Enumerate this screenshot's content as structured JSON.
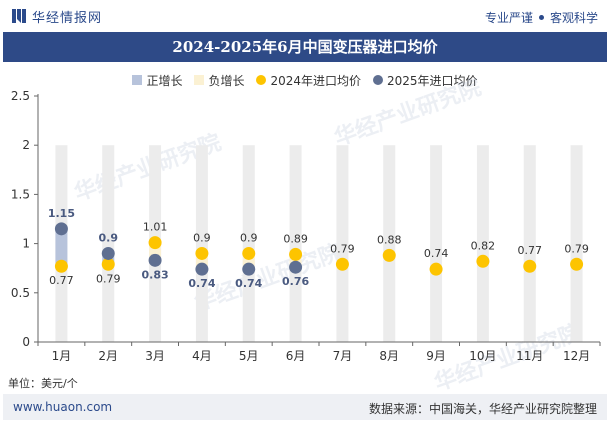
{
  "header": {
    "brand": "华经情报网",
    "tagline_left": "专业严谨",
    "tagline_right": "客观科学"
  },
  "title": "2024-2025年6月中国变压器进口均价",
  "legend": [
    {
      "label": "正增长",
      "color": "#b7c3db",
      "shape": "rect"
    },
    {
      "label": "负增长",
      "color": "#fbf1d3",
      "shape": "rect"
    },
    {
      "label": "2024年进口均价",
      "color": "#fdc400",
      "shape": "dot"
    },
    {
      "label": "2025年进口均价",
      "color": "#5f6f91",
      "shape": "dot"
    }
  ],
  "unit_label": "单位：美元/个",
  "footer": {
    "url": "www.huaon.com",
    "source": "数据来源：中国海关，华经产业研究院整理"
  },
  "watermark": "华经产业研究院",
  "chart_data": {
    "type": "scatter",
    "categories": [
      "1月",
      "2月",
      "3月",
      "4月",
      "5月",
      "6月",
      "7月",
      "8月",
      "9月",
      "10月",
      "11月",
      "12月"
    ],
    "ylim": [
      0,
      2.5
    ],
    "yticks": [
      0,
      0.5,
      1,
      1.5,
      2,
      2.5
    ],
    "series": [
      {
        "name": "2024年进口均价",
        "color": "#fdc400",
        "values": [
          0.77,
          0.79,
          1.01,
          0.9,
          0.9,
          0.89,
          0.79,
          0.88,
          0.74,
          0.82,
          0.77,
          0.79
        ]
      },
      {
        "name": "2025年进口均价",
        "color": "#5f6f91",
        "values": [
          1.15,
          0.9,
          0.83,
          0.74,
          0.74,
          0.76,
          null,
          null,
          null,
          null,
          null,
          null
        ]
      }
    ],
    "grid": true,
    "legend_position": "top-center"
  }
}
